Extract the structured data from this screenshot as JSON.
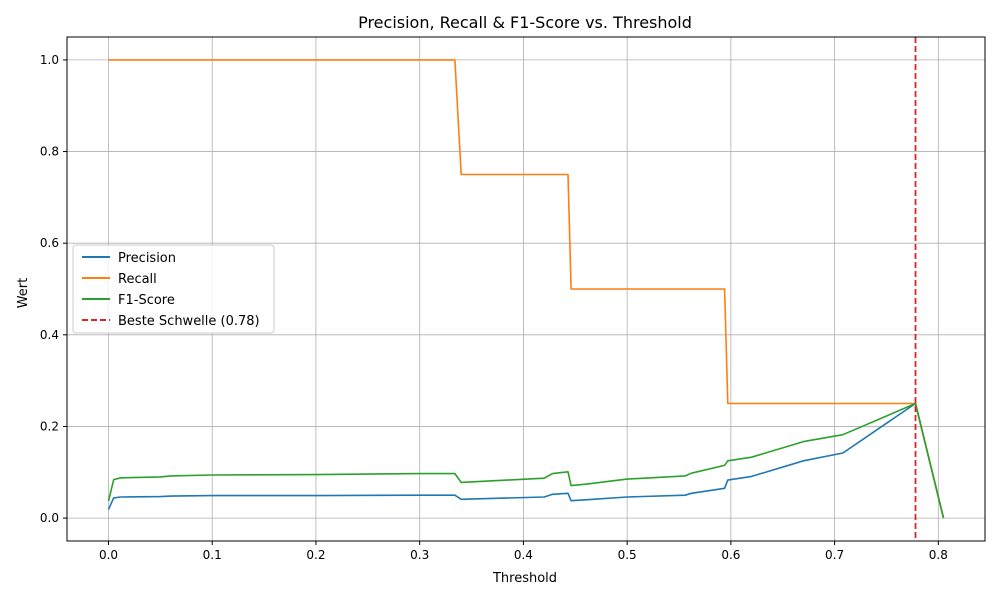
{
  "chart_data": {
    "type": "line",
    "title": "Precision, Recall & F1-Score vs. Threshold",
    "xlabel": "Threshold",
    "ylabel": "Wert",
    "xlim": [
      -0.04,
      0.845
    ],
    "ylim": [
      -0.05,
      1.05
    ],
    "xticks": [
      "0.0",
      "0.1",
      "0.2",
      "0.3",
      "0.4",
      "0.5",
      "0.6",
      "0.7",
      "0.8"
    ],
    "yticks": [
      "0.0",
      "0.2",
      "0.4",
      "0.6",
      "0.8",
      "1.0"
    ],
    "grid": true,
    "legend_position": "center-left",
    "series": [
      {
        "name": "Precision",
        "color": "#1f77b4",
        "x": [
          0.0,
          0.005,
          0.012,
          0.05,
          0.06,
          0.1,
          0.2,
          0.3,
          0.334,
          0.34,
          0.42,
          0.428,
          0.443,
          0.446,
          0.46,
          0.5,
          0.556,
          0.562,
          0.594,
          0.597,
          0.62,
          0.67,
          0.708,
          0.778,
          0.805
        ],
        "y": [
          0.019,
          0.044,
          0.046,
          0.047,
          0.048,
          0.049,
          0.049,
          0.05,
          0.05,
          0.041,
          0.046,
          0.052,
          0.054,
          0.038,
          0.04,
          0.046,
          0.05,
          0.054,
          0.065,
          0.083,
          0.091,
          0.125,
          0.142,
          0.25,
          0.0
        ]
      },
      {
        "name": "Recall",
        "color": "#ff7f0e",
        "x": [
          0.0,
          0.334,
          0.34,
          0.443,
          0.446,
          0.594,
          0.597,
          0.778,
          0.805
        ],
        "y": [
          1.0,
          1.0,
          0.75,
          0.75,
          0.5,
          0.5,
          0.25,
          0.25,
          0.0
        ]
      },
      {
        "name": "F1-Score",
        "color": "#2ca02c",
        "x": [
          0.0,
          0.005,
          0.012,
          0.05,
          0.06,
          0.1,
          0.2,
          0.3,
          0.334,
          0.34,
          0.42,
          0.428,
          0.443,
          0.446,
          0.46,
          0.5,
          0.556,
          0.562,
          0.594,
          0.597,
          0.62,
          0.67,
          0.708,
          0.778,
          0.805
        ],
        "y": [
          0.037,
          0.084,
          0.088,
          0.09,
          0.092,
          0.094,
          0.095,
          0.097,
          0.097,
          0.078,
          0.087,
          0.097,
          0.101,
          0.071,
          0.074,
          0.085,
          0.092,
          0.098,
          0.115,
          0.125,
          0.133,
          0.167,
          0.182,
          0.25,
          0.0
        ]
      }
    ],
    "reference_line": {
      "name": "Beste Schwelle (0.78)",
      "x": 0.778,
      "color": "#d62728",
      "style": "dashed"
    }
  }
}
